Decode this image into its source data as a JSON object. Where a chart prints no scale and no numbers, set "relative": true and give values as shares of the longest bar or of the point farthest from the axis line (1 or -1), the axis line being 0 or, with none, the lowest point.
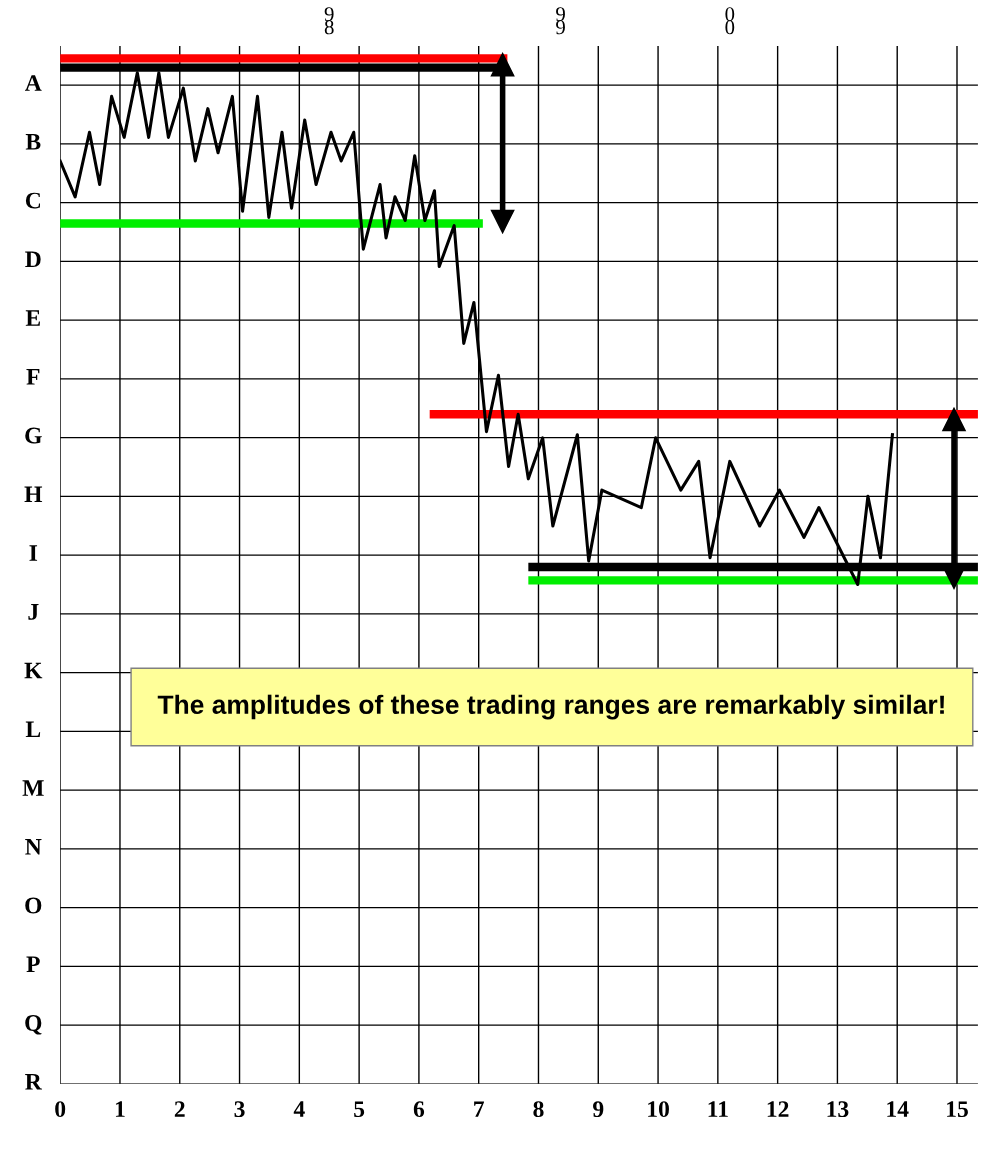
{
  "chart_data": {
    "type": "line",
    "relative": true,
    "xlim": [
      0,
      15.35
    ],
    "xticks": [
      0,
      1,
      2,
      3,
      4,
      5,
      6,
      7,
      8,
      9,
      10,
      11,
      12,
      13,
      14,
      15
    ],
    "grid": true,
    "annotations": [
      "9\n8",
      "9\n9",
      "0\n0",
      "A",
      "B",
      "C",
      "D",
      "E",
      "F",
      "G",
      "H",
      "I",
      "J",
      "K",
      "L",
      "M",
      "N",
      "O",
      "P",
      "Q",
      "R",
      "The amplitudes of these trading ranges are remarkably similar!"
    ],
    "series": [
      {
        "color": "#000000",
        "x": [
          0.0,
          0.25,
          0.49,
          0.66,
          0.86,
          1.07,
          1.29,
          1.48,
          1.65,
          1.81,
          2.06,
          2.26,
          2.47,
          2.64,
          2.88,
          3.05,
          3.3,
          3.49,
          3.71,
          3.87,
          4.09,
          4.28,
          4.53,
          4.7,
          4.91,
          5.07,
          5.35,
          5.45,
          5.6,
          5.77,
          5.93,
          6.1,
          6.26,
          6.34,
          6.59,
          6.75,
          6.92,
          7.13,
          7.33,
          7.5,
          7.66,
          7.83,
          8.07,
          8.24,
          8.65,
          8.84,
          9.06,
          9.72,
          9.96,
          10.38,
          10.68,
          10.87,
          11.2,
          11.7,
          12.03,
          12.44,
          12.69,
          13.34,
          13.51,
          13.72,
          13.92
        ],
        "values": [
          0.9,
          0.865,
          0.928,
          0.877,
          0.963,
          0.923,
          0.986,
          0.923,
          0.986,
          0.923,
          0.971,
          0.9,
          0.951,
          0.908,
          0.963,
          0.851,
          0.963,
          0.845,
          0.928,
          0.854,
          0.94,
          0.877,
          0.928,
          0.9,
          0.928,
          0.814,
          0.877,
          0.825,
          0.865,
          0.842,
          0.905,
          0.842,
          0.871,
          0.797,
          0.837,
          0.722,
          0.762,
          0.636,
          0.691,
          0.602,
          0.653,
          0.59,
          0.63,
          0.544,
          0.633,
          0.51,
          0.579,
          0.562,
          0.63,
          0.579,
          0.607,
          0.513,
          0.607,
          0.544,
          0.579,
          0.533,
          0.562,
          0.487,
          0.573,
          0.513,
          0.633
        ]
      },
      {
        "color": "#ff0000",
        "x": [
          0,
          7.41
        ],
        "values": [
          1.0,
          1.0
        ]
      },
      {
        "color": "#000000",
        "x": [
          0,
          7.25
        ],
        "values": [
          0.991,
          0.991
        ]
      },
      {
        "color": "#00ee00",
        "x": [
          0,
          7.0
        ],
        "values": [
          0.839,
          0.839
        ]
      },
      {
        "color": "#ff0000",
        "x": [
          6.25,
          15.3
        ],
        "values": [
          0.653,
          0.653
        ]
      },
      {
        "color": "#000000",
        "x": [
          7.9,
          15.3
        ],
        "values": [
          0.504,
          0.504
        ]
      },
      {
        "color": "#00ee00",
        "x": [
          7.9,
          15.3
        ],
        "values": [
          0.491,
          0.491
        ]
      },
      {
        "marker": "triangle",
        "color": "#000000",
        "x": [
          7.4,
          7.4
        ],
        "values": [
          0.994,
          0.841
        ]
      },
      {
        "marker": "triangle",
        "color": "#000000",
        "x": [
          14.95,
          14.95
        ],
        "values": [
          0.648,
          0.494
        ]
      }
    ]
  }
}
